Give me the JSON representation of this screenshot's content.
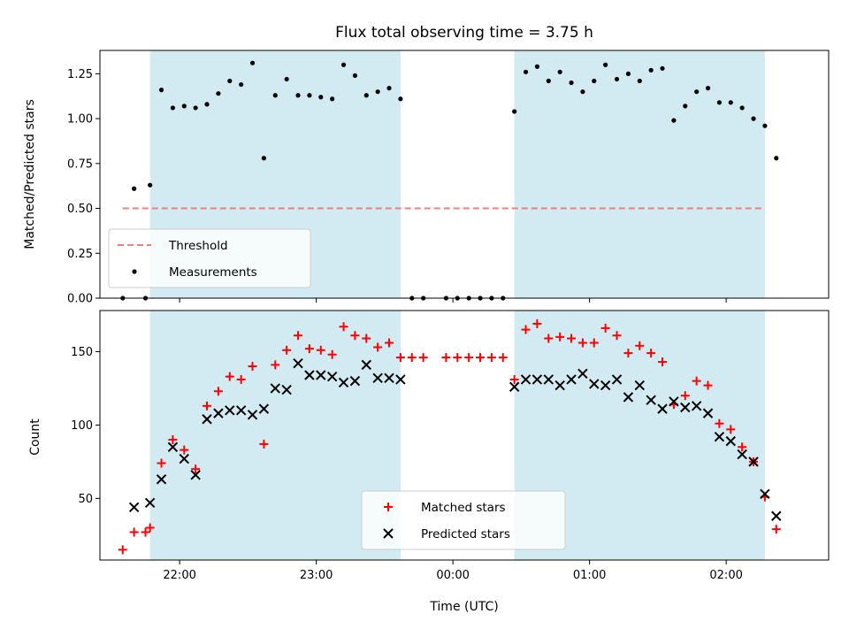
{
  "chart_data": [
    {
      "type": "scatter",
      "title": "Flux total observing time = 3.75 h",
      "xlabel": "",
      "ylabel": "Matched/Predicted stars",
      "ylim": [
        0,
        1.38
      ],
      "yticks": [
        "0.00",
        "0.25",
        "0.50",
        "0.75",
        "1.00",
        "1.25"
      ],
      "xticks": [
        "22:00",
        "23:00",
        "00:00",
        "01:00",
        "02:00"
      ],
      "xlim": [
        "21:25",
        "02:45"
      ],
      "shaded_regions": [
        [
          "21:47",
          "23:37"
        ],
        [
          "00:27",
          "02:17"
        ]
      ],
      "shade_color": "#add8e6",
      "grid": false,
      "legend_position": "lower-left",
      "threshold": {
        "name": "Threshold",
        "y": 0.5,
        "x_range": [
          "21:35",
          "02:17"
        ],
        "color": "#f08080",
        "style": "dashed"
      },
      "series": [
        {
          "name": "Measurements",
          "color": "#000000",
          "marker": "dot",
          "points": [
            [
              "21:35",
              0.0
            ],
            [
              "21:40",
              0.61
            ],
            [
              "21:45",
              0.0
            ],
            [
              "21:47",
              0.63
            ],
            [
              "21:52",
              1.16
            ],
            [
              "21:57",
              1.06
            ],
            [
              "22:02",
              1.07
            ],
            [
              "22:07",
              1.06
            ],
            [
              "22:12",
              1.08
            ],
            [
              "22:17",
              1.14
            ],
            [
              "22:22",
              1.21
            ],
            [
              "22:27",
              1.19
            ],
            [
              "22:32",
              1.31
            ],
            [
              "22:37",
              0.78
            ],
            [
              "22:42",
              1.13
            ],
            [
              "22:47",
              1.22
            ],
            [
              "22:52",
              1.13
            ],
            [
              "22:57",
              1.13
            ],
            [
              "23:02",
              1.12
            ],
            [
              "23:07",
              1.11
            ],
            [
              "23:12",
              1.3
            ],
            [
              "23:17",
              1.24
            ],
            [
              "23:22",
              1.13
            ],
            [
              "23:27",
              1.15
            ],
            [
              "23:32",
              1.17
            ],
            [
              "23:37",
              1.11
            ],
            [
              "23:42",
              0.0
            ],
            [
              "23:47",
              0.0
            ],
            [
              "23:57",
              0.0
            ],
            [
              "00:02",
              0.0
            ],
            [
              "00:07",
              0.0
            ],
            [
              "00:12",
              0.0
            ],
            [
              "00:17",
              0.0
            ],
            [
              "00:22",
              0.0
            ],
            [
              "00:27",
              1.04
            ],
            [
              "00:32",
              1.26
            ],
            [
              "00:37",
              1.29
            ],
            [
              "00:42",
              1.21
            ],
            [
              "00:47",
              1.26
            ],
            [
              "00:52",
              1.2
            ],
            [
              "00:57",
              1.15
            ],
            [
              "01:02",
              1.21
            ],
            [
              "01:07",
              1.3
            ],
            [
              "01:12",
              1.22
            ],
            [
              "01:17",
              1.25
            ],
            [
              "01:22",
              1.21
            ],
            [
              "01:27",
              1.27
            ],
            [
              "01:32",
              1.28
            ],
            [
              "01:37",
              0.99
            ],
            [
              "01:42",
              1.07
            ],
            [
              "01:47",
              1.15
            ],
            [
              "01:52",
              1.17
            ],
            [
              "01:57",
              1.09
            ],
            [
              "02:02",
              1.09
            ],
            [
              "02:07",
              1.06
            ],
            [
              "02:12",
              1.0
            ],
            [
              "02:17",
              0.96
            ],
            [
              "02:22",
              0.78
            ]
          ]
        }
      ]
    },
    {
      "type": "scatter",
      "title": "",
      "xlabel": "Time (UTC)",
      "ylabel": "Count",
      "ylim": [
        8,
        178
      ],
      "yticks": [
        "50",
        "100",
        "150"
      ],
      "xticks": [
        "22:00",
        "23:00",
        "00:00",
        "01:00",
        "02:00"
      ],
      "xlim": [
        "21:25",
        "02:45"
      ],
      "shaded_regions": [
        [
          "21:47",
          "23:37"
        ],
        [
          "00:27",
          "02:17"
        ]
      ],
      "shade_color": "#add8e6",
      "grid": false,
      "legend_position": "lower-center",
      "series": [
        {
          "name": "Matched stars",
          "color": "#ff0000",
          "marker": "plus",
          "points": [
            [
              "21:35",
              15
            ],
            [
              "21:40",
              27
            ],
            [
              "21:45",
              27
            ],
            [
              "21:47",
              30
            ],
            [
              "21:52",
              74
            ],
            [
              "21:57",
              90
            ],
            [
              "22:02",
              83
            ],
            [
              "22:07",
              70
            ],
            [
              "22:12",
              113
            ],
            [
              "22:17",
              123
            ],
            [
              "22:22",
              133
            ],
            [
              "22:27",
              131
            ],
            [
              "22:32",
              140
            ],
            [
              "22:37",
              87
            ],
            [
              "22:42",
              141
            ],
            [
              "22:47",
              151
            ],
            [
              "22:52",
              161
            ],
            [
              "22:57",
              152
            ],
            [
              "23:02",
              151
            ],
            [
              "23:07",
              148
            ],
            [
              "23:12",
              167
            ],
            [
              "23:17",
              161
            ],
            [
              "23:22",
              159
            ],
            [
              "23:27",
              153
            ],
            [
              "23:32",
              156
            ],
            [
              "23:37",
              146
            ],
            [
              "23:42",
              146
            ],
            [
              "23:47",
              146
            ],
            [
              "23:57",
              146
            ],
            [
              "00:02",
              146
            ],
            [
              "00:07",
              146
            ],
            [
              "00:12",
              146
            ],
            [
              "00:17",
              146
            ],
            [
              "00:22",
              146
            ],
            [
              "00:27",
              131
            ],
            [
              "00:32",
              165
            ],
            [
              "00:37",
              169
            ],
            [
              "00:42",
              159
            ],
            [
              "00:47",
              160
            ],
            [
              "00:52",
              159
            ],
            [
              "00:57",
              156
            ],
            [
              "01:02",
              156
            ],
            [
              "01:07",
              166
            ],
            [
              "01:12",
              161
            ],
            [
              "01:17",
              149
            ],
            [
              "01:22",
              154
            ],
            [
              "01:27",
              149
            ],
            [
              "01:32",
              143
            ],
            [
              "01:37",
              114
            ],
            [
              "01:42",
              120
            ],
            [
              "01:47",
              130
            ],
            [
              "01:52",
              127
            ],
            [
              "01:57",
              101
            ],
            [
              "02:02",
              97
            ],
            [
              "02:07",
              85
            ],
            [
              "02:12",
              75
            ],
            [
              "02:17",
              51
            ],
            [
              "02:22",
              29
            ]
          ]
        },
        {
          "name": "Predicted stars",
          "color": "#000000",
          "marker": "x",
          "points": [
            [
              "21:40",
              44
            ],
            [
              "21:47",
              47
            ],
            [
              "21:52",
              63
            ],
            [
              "21:57",
              85
            ],
            [
              "22:02",
              77
            ],
            [
              "22:07",
              66
            ],
            [
              "22:12",
              104
            ],
            [
              "22:17",
              108
            ],
            [
              "22:22",
              110
            ],
            [
              "22:27",
              110
            ],
            [
              "22:32",
              107
            ],
            [
              "22:37",
              111
            ],
            [
              "22:42",
              125
            ],
            [
              "22:47",
              124
            ],
            [
              "22:52",
              142
            ],
            [
              "22:57",
              134
            ],
            [
              "23:02",
              134
            ],
            [
              "23:07",
              133
            ],
            [
              "23:12",
              129
            ],
            [
              "23:17",
              130
            ],
            [
              "23:22",
              141
            ],
            [
              "23:27",
              132
            ],
            [
              "23:32",
              132
            ],
            [
              "23:37",
              131
            ],
            [
              "00:27",
              126
            ],
            [
              "00:32",
              131
            ],
            [
              "00:37",
              131
            ],
            [
              "00:42",
              131
            ],
            [
              "00:47",
              127
            ],
            [
              "00:52",
              131
            ],
            [
              "00:57",
              135
            ],
            [
              "01:02",
              128
            ],
            [
              "01:07",
              127
            ],
            [
              "01:12",
              131
            ],
            [
              "01:17",
              119
            ],
            [
              "01:22",
              127
            ],
            [
              "01:27",
              117
            ],
            [
              "01:32",
              111
            ],
            [
              "01:37",
              116
            ],
            [
              "01:42",
              112
            ],
            [
              "01:47",
              113
            ],
            [
              "01:52",
              108
            ],
            [
              "01:57",
              92
            ],
            [
              "02:02",
              89
            ],
            [
              "02:07",
              80
            ],
            [
              "02:12",
              75
            ],
            [
              "02:17",
              53
            ],
            [
              "02:22",
              38
            ]
          ]
        }
      ]
    }
  ]
}
